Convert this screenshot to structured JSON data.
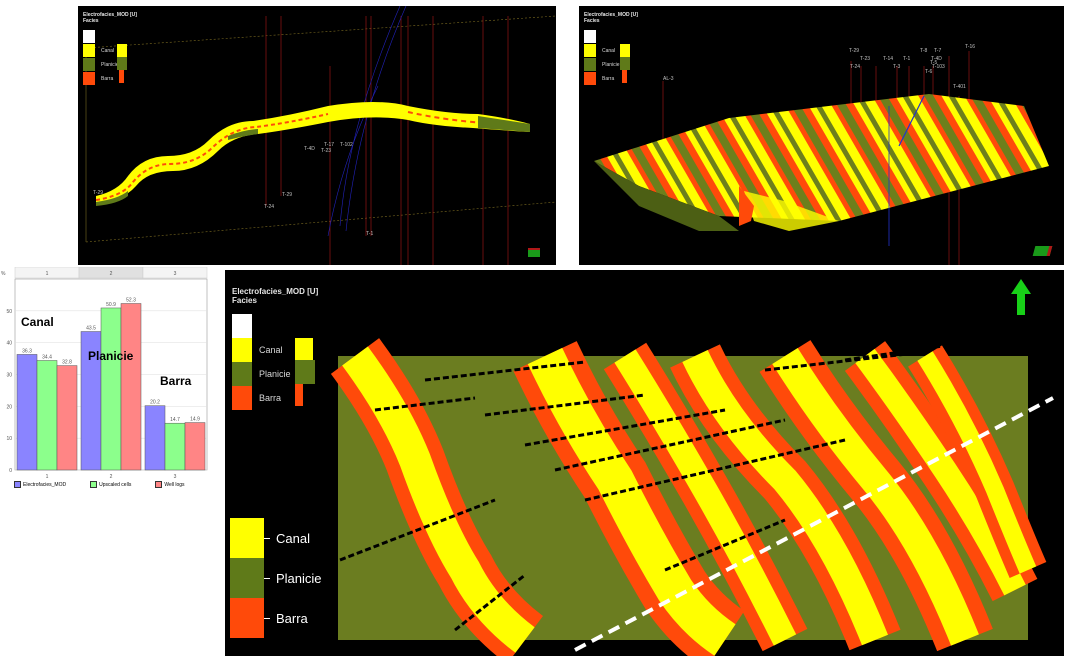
{
  "colors": {
    "canal": "#ffff00",
    "planicie": "#5f7a19",
    "barra": "#ff4a0a",
    "white": "#ffffff",
    "bar_model": "#8a84ff",
    "bar_upscaled": "#8cff8c",
    "bar_wells": "#ff8585",
    "arrow": "#18d018",
    "well_line": "#c81e1e"
  },
  "panel_top_left": {
    "title": "Electrofacies_MOD [U]",
    "subtitle": "Facies",
    "legend": [
      {
        "label": "",
        "color": "#ffffff"
      },
      {
        "label": "Canal",
        "color": "#ffff00"
      },
      {
        "label": "Planicie",
        "color": "#5f7a19"
      },
      {
        "label": "Barra",
        "color": "#ff4a0a"
      }
    ],
    "wells": [
      "T-29",
      "T-24",
      "T-1",
      "T-4D",
      "T-23",
      "T-17",
      "T-102",
      "T-29"
    ]
  },
  "panel_top_right": {
    "title": "Electrofacies_MOD [U]",
    "subtitle": "Facies",
    "legend": [
      {
        "label": "",
        "color": "#ffffff"
      },
      {
        "label": "Canal",
        "color": "#ffff00"
      },
      {
        "label": "Planicie",
        "color": "#5f7a19"
      },
      {
        "label": "Barra",
        "color": "#ff4a0a"
      }
    ],
    "wells": [
      "AL-3",
      "T-29",
      "T-23",
      "T-24",
      "T-14",
      "T-1",
      "T-3",
      "T-8",
      "T-7",
      "T-4D",
      "T-5",
      "T-103",
      "T-6",
      "T-16",
      "T-401"
    ]
  },
  "panel_main": {
    "title": "Electrofacies_MOD [U]",
    "subtitle": "Facies",
    "legend": [
      {
        "label": "",
        "color": "#ffffff"
      },
      {
        "label": "Canal",
        "color": "#ffff00"
      },
      {
        "label": "Planicie",
        "color": "#5f7a19"
      },
      {
        "label": "Barra",
        "color": "#ff4a0a"
      }
    ],
    "big_legend": [
      {
        "label": "Canal",
        "color": "#ffff00"
      },
      {
        "label": "Planicie",
        "color": "#5f7a19"
      },
      {
        "label": "Barra",
        "color": "#ff4a0a"
      }
    ]
  },
  "chart_data": {
    "type": "bar",
    "ylabel_unit": "%",
    "ylim": [
      0,
      60
    ],
    "yticks": [
      0,
      10,
      20,
      30,
      40,
      50
    ],
    "top_headers": [
      "1",
      "2",
      "3"
    ],
    "categories": [
      "1",
      "2",
      "3"
    ],
    "category_names": [
      "Canal",
      "Planicie",
      "Barra"
    ],
    "series": [
      {
        "name": "Electrofacies_MOD",
        "color": "#8a84ff",
        "values": [
          36.3,
          43.5,
          20.2
        ]
      },
      {
        "name": "Upscaled cells",
        "color": "#8cff8c",
        "values": [
          34.4,
          50.9,
          14.7
        ]
      },
      {
        "name": "Well logs",
        "color": "#ff8585",
        "values": [
          32.8,
          52.3,
          14.9
        ]
      }
    ],
    "grid": true,
    "legend_position": "bottom"
  }
}
